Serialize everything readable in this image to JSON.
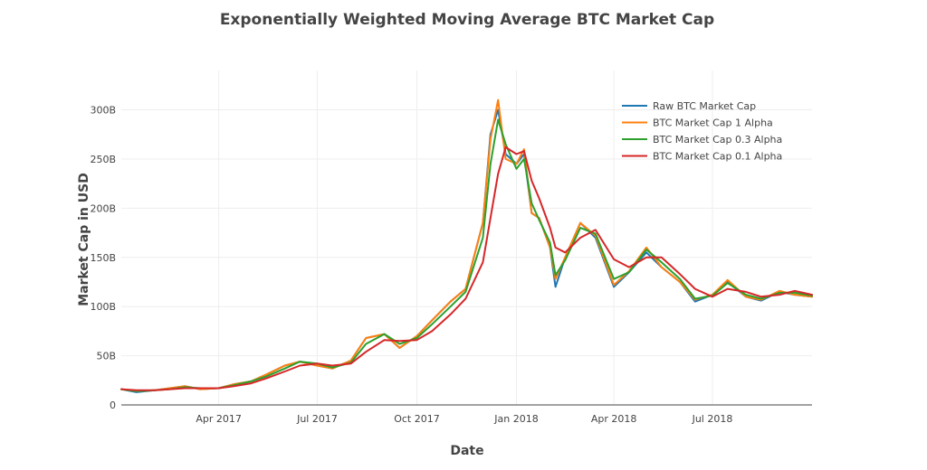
{
  "chart_data": {
    "type": "line",
    "title": "Exponentially Weighted Moving Average BTC Market Cap",
    "xlabel": "Date",
    "ylabel": "Market Cap in USD",
    "xlim": [
      "2017-01-01",
      "2018-10-01"
    ],
    "ylim": [
      0,
      340
    ],
    "x_ticks": [
      {
        "date": "2017-04-01",
        "label": "Apr 2017"
      },
      {
        "date": "2017-07-01",
        "label": "Jul 2017"
      },
      {
        "date": "2017-10-01",
        "label": "Oct 2017"
      },
      {
        "date": "2018-01-01",
        "label": "Jan 2018"
      },
      {
        "date": "2018-04-01",
        "label": "Apr 2018"
      },
      {
        "date": "2018-07-01",
        "label": "Jul 2018"
      }
    ],
    "y_ticks": [
      {
        "value": 0,
        "label": "0"
      },
      {
        "value": 50,
        "label": "50B"
      },
      {
        "value": 100,
        "label": "100B"
      },
      {
        "value": 150,
        "label": "150B"
      },
      {
        "value": 200,
        "label": "200B"
      },
      {
        "value": 250,
        "label": "250B"
      },
      {
        "value": 300,
        "label": "300B"
      }
    ],
    "grid": true,
    "legend": "top-right",
    "x": [
      "2017-01-01",
      "2017-01-15",
      "2017-02-01",
      "2017-02-15",
      "2017-03-01",
      "2017-03-15",
      "2017-04-01",
      "2017-04-15",
      "2017-05-01",
      "2017-05-15",
      "2017-06-01",
      "2017-06-15",
      "2017-07-01",
      "2017-07-15",
      "2017-08-01",
      "2017-08-15",
      "2017-09-01",
      "2017-09-15",
      "2017-10-01",
      "2017-10-15",
      "2017-11-01",
      "2017-11-15",
      "2017-12-01",
      "2017-12-08",
      "2017-12-15",
      "2017-12-22",
      "2018-01-01",
      "2018-01-08",
      "2018-01-15",
      "2018-01-22",
      "2018-02-01",
      "2018-02-06",
      "2018-02-15",
      "2018-03-01",
      "2018-03-15",
      "2018-04-01",
      "2018-04-15",
      "2018-05-01",
      "2018-05-15",
      "2018-06-01",
      "2018-06-15",
      "2018-07-01",
      "2018-07-15",
      "2018-08-01",
      "2018-08-15",
      "2018-09-01",
      "2018-09-15",
      "2018-10-01"
    ],
    "series": [
      {
        "name": "Raw BTC Market Cap",
        "color": "#1f77b4",
        "values": [
          16,
          13,
          15,
          17,
          19,
          16,
          17,
          21,
          24,
          31,
          40,
          44,
          40,
          37,
          45,
          68,
          72,
          58,
          70,
          86,
          105,
          118,
          185,
          275,
          300,
          255,
          245,
          255,
          195,
          190,
          160,
          120,
          150,
          185,
          170,
          120,
          135,
          155,
          140,
          125,
          105,
          112,
          125,
          110,
          106,
          115,
          112,
          110
        ]
      },
      {
        "name": "BTC Market Cap 1 Alpha",
        "color": "#ff7f0e",
        "values": [
          16,
          14,
          15,
          17,
          19,
          16,
          17,
          21,
          24,
          31,
          40,
          44,
          40,
          37,
          45,
          68,
          72,
          58,
          70,
          86,
          105,
          118,
          185,
          270,
          310,
          250,
          245,
          260,
          195,
          190,
          160,
          128,
          150,
          185,
          172,
          122,
          136,
          160,
          140,
          125,
          107,
          112,
          127,
          110,
          107,
          116,
          112,
          110
        ]
      },
      {
        "name": "BTC Market Cap 0.3 Alpha",
        "color": "#2ca02c",
        "values": [
          16,
          14,
          15,
          16,
          18,
          17,
          17,
          20,
          24,
          29,
          37,
          44,
          42,
          38,
          43,
          62,
          72,
          62,
          68,
          82,
          100,
          115,
          170,
          245,
          290,
          265,
          240,
          250,
          205,
          188,
          165,
          132,
          147,
          180,
          174,
          128,
          135,
          158,
          145,
          128,
          108,
          111,
          124,
          112,
          108,
          114,
          114,
          111
        ]
      },
      {
        "name": "BTC Market Cap 0.1 Alpha",
        "color": "#d62728",
        "values": [
          16,
          15,
          15,
          16,
          17,
          17,
          17,
          19,
          22,
          27,
          34,
          40,
          42,
          40,
          42,
          54,
          66,
          65,
          66,
          75,
          92,
          108,
          145,
          190,
          235,
          262,
          255,
          258,
          228,
          210,
          180,
          160,
          155,
          170,
          178,
          148,
          140,
          150,
          150,
          133,
          118,
          110,
          118,
          115,
          110,
          112,
          116,
          112
        ]
      }
    ]
  }
}
